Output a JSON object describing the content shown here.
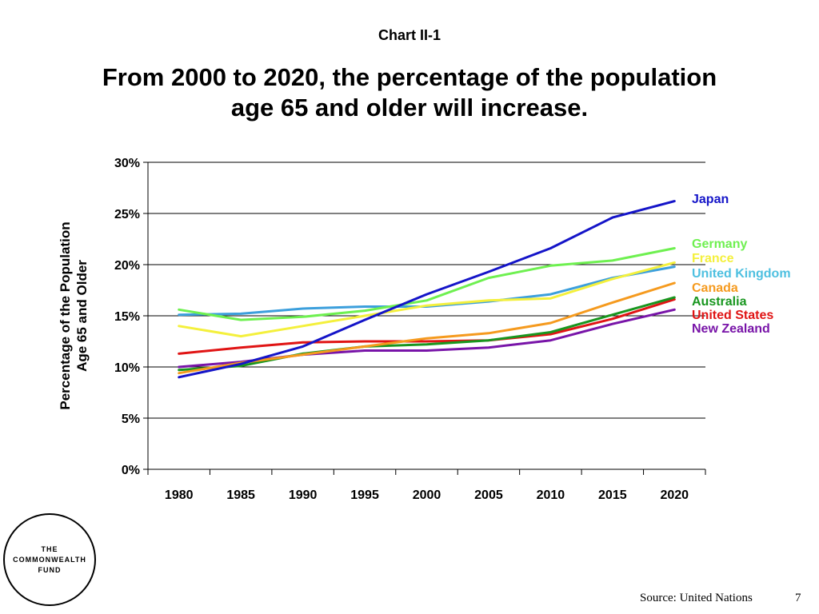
{
  "header": {
    "chart_number": "Chart II-1",
    "title_line1": "From 2000 to 2020, the percentage of the population",
    "title_line2": "age 65 and older will increase."
  },
  "chart_data": {
    "type": "line",
    "title": "",
    "xlabel": "",
    "ylabel_line1": "Percentage of the Population",
    "ylabel_line2": "Age 65 and Older",
    "x": [
      1980,
      1985,
      1990,
      1995,
      2000,
      2005,
      2010,
      2015,
      2020
    ],
    "x_tick_labels": [
      "1980",
      "1985",
      "1990",
      "1995",
      "2000",
      "2005",
      "2010",
      "2015",
      "2020"
    ],
    "ylim": [
      0,
      30
    ],
    "y_ticks": [
      0,
      5,
      10,
      15,
      20,
      25,
      30
    ],
    "y_tick_labels": [
      "0%",
      "5%",
      "10%",
      "15%",
      "20%",
      "25%",
      "30%"
    ],
    "grid": "horizontal",
    "legend_placement": "right",
    "series": [
      {
        "name": "Japan",
        "color": "#1414c8",
        "values": [
          9.0,
          10.3,
          12.0,
          14.6,
          17.1,
          19.3,
          21.6,
          24.6,
          26.2
        ]
      },
      {
        "name": "Germany",
        "color": "#6ef050",
        "values": [
          15.6,
          14.6,
          14.9,
          15.5,
          16.5,
          18.7,
          19.9,
          20.4,
          21.6
        ]
      },
      {
        "name": "France",
        "color": "#f4f03c",
        "values": [
          14.0,
          13.0,
          14.0,
          15.0,
          16.0,
          16.5,
          16.7,
          18.6,
          20.2
        ]
      },
      {
        "name": "United Kingdom",
        "color": "#3c9fdc",
        "values": [
          15.1,
          15.2,
          15.7,
          15.9,
          15.9,
          16.4,
          17.1,
          18.7,
          19.8
        ]
      },
      {
        "name": "Canada",
        "color": "#f59a1e",
        "values": [
          9.4,
          10.4,
          11.2,
          12.0,
          12.8,
          13.3,
          14.3,
          16.3,
          18.2
        ]
      },
      {
        "name": "Australia",
        "color": "#18961e",
        "values": [
          9.7,
          10.1,
          11.3,
          12.0,
          12.2,
          12.6,
          13.4,
          15.1,
          16.8
        ]
      },
      {
        "name": "United States",
        "color": "#e01414",
        "values": [
          11.3,
          11.9,
          12.4,
          12.5,
          12.5,
          12.6,
          13.2,
          14.7,
          16.6
        ]
      },
      {
        "name": "New Zealand",
        "color": "#7814a8",
        "values": [
          10.0,
          10.5,
          11.2,
          11.6,
          11.6,
          11.9,
          12.6,
          14.2,
          15.6
        ]
      }
    ]
  },
  "legend_text_colors": {
    "Japan": "#1414c8",
    "Germany": "#6ef050",
    "France": "#f4f03c",
    "United Kingdom": "#4ec0e0",
    "Canada": "#f59a1e",
    "Australia": "#18961e",
    "United States": "#e01414",
    "New Zealand": "#7814a8"
  },
  "logo": {
    "line1": "THE",
    "line2": "COMMONWEALTH",
    "line3": "FUND"
  },
  "footer": {
    "source": "Source: United Nations",
    "page_number": "7"
  }
}
